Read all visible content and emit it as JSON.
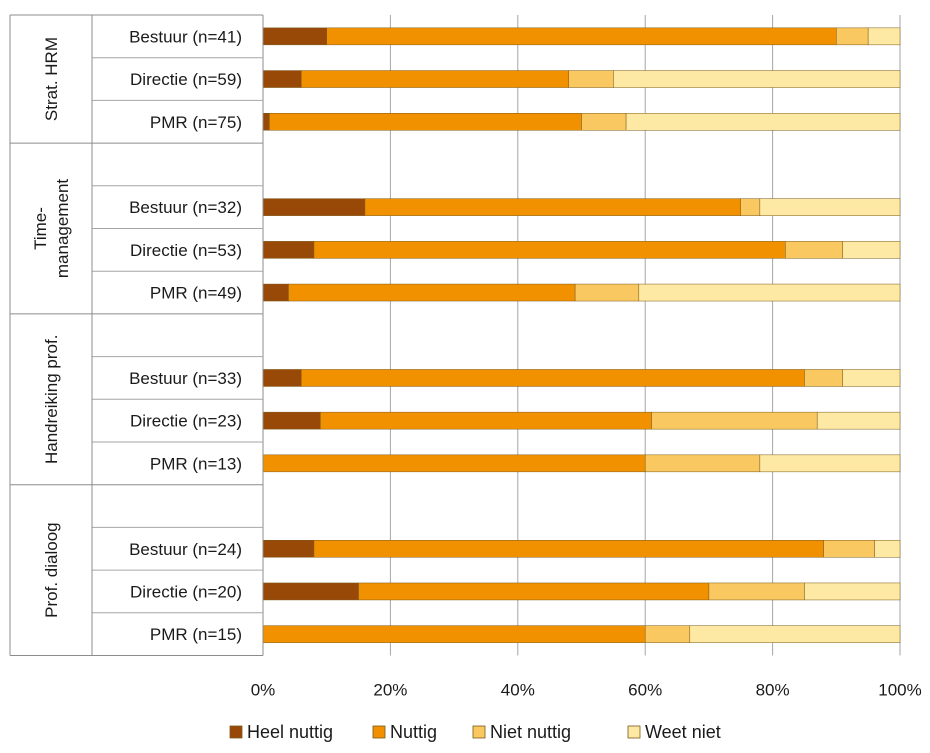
{
  "chart_data": {
    "type": "bar",
    "orientation": "horizontal",
    "stacked": true,
    "percent": true,
    "xlim": [
      0,
      100
    ],
    "xticks": [
      "0%",
      "20%",
      "40%",
      "60%",
      "80%",
      "100%"
    ],
    "grid": true,
    "legend_position": "bottom",
    "series": [
      {
        "name": "Heel nuttig",
        "color": "#984807"
      },
      {
        "name": "Nuttig",
        "color": "#f29100"
      },
      {
        "name": "Niet nuttig",
        "color": "#fac860"
      },
      {
        "name": "Weet niet",
        "color": "#fde9a3"
      }
    ],
    "groups": [
      {
        "label": [
          "Strat. HRM"
        ],
        "rows": [
          {
            "label": "Bestuur (n=41)",
            "values": [
              10,
              80,
              5,
              5
            ]
          },
          {
            "label": "Directie (n=59)",
            "values": [
              6,
              42,
              7,
              45
            ]
          },
          {
            "label": "PMR (n=75)",
            "values": [
              1,
              49,
              7,
              43
            ]
          }
        ]
      },
      {
        "label": [
          "Time-",
          "management"
        ],
        "rows": [
          {
            "label": "",
            "values": null
          },
          {
            "label": "Bestuur (n=32)",
            "values": [
              16,
              59,
              3,
              22
            ]
          },
          {
            "label": "Directie (n=53)",
            "values": [
              8,
              74,
              9,
              9
            ]
          },
          {
            "label": "PMR (n=49)",
            "values": [
              4,
              45,
              10,
              41
            ]
          }
        ]
      },
      {
        "label": [
          "Handreiking prof."
        ],
        "rows": [
          {
            "label": "",
            "values": null
          },
          {
            "label": "Bestuur (n=33)",
            "values": [
              6,
              79,
              6,
              9
            ]
          },
          {
            "label": "Directie (n=23)",
            "values": [
              9,
              52,
              26,
              13
            ]
          },
          {
            "label": "PMR (n=13)",
            "values": [
              0,
              60,
              18,
              22
            ]
          }
        ]
      },
      {
        "label": [
          "Prof. dialoog"
        ],
        "rows": [
          {
            "label": "",
            "values": null
          },
          {
            "label": "Bestuur (n=24)",
            "values": [
              8,
              80,
              8,
              4
            ]
          },
          {
            "label": "Directie (n=20)",
            "values": [
              15,
              55,
              15,
              15
            ]
          },
          {
            "label": "PMR (n=15)",
            "values": [
              0,
              60,
              7,
              33
            ]
          }
        ]
      }
    ]
  }
}
